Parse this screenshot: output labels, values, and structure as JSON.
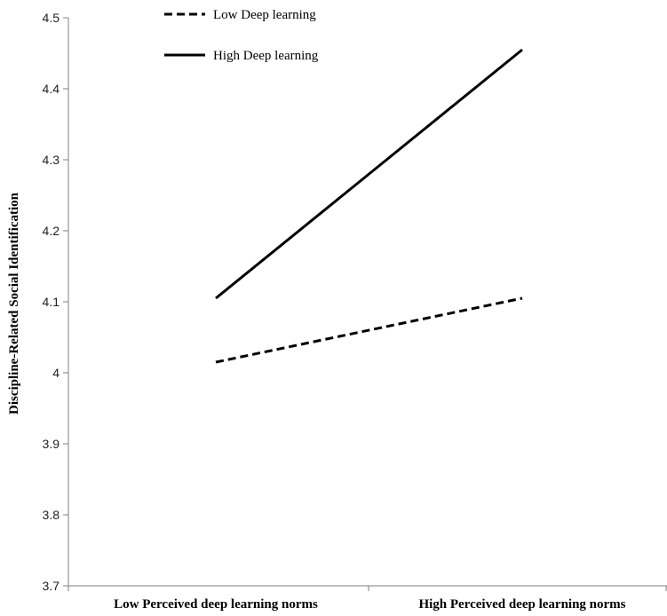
{
  "chart_data": {
    "type": "line",
    "title": "",
    "xlabel": "",
    "ylabel": "Discipline-Related  Social Identification",
    "categories": [
      "Low Perceived deep learning norms",
      "High Perceived deep learning norms"
    ],
    "ylim": [
      3.7,
      4.5
    ],
    "yticks": [
      "3.7",
      "3.8",
      "3.9",
      "4",
      "4.1",
      "4.2",
      "4.3",
      "4.4",
      "4.5"
    ],
    "grid": false,
    "legend_position": "top-left",
    "series": [
      {
        "name": "Low Deep learning",
        "values": [
          4.015,
          4.105
        ],
        "style": "dashed",
        "color": "#000000"
      },
      {
        "name": "High Deep learning",
        "values": [
          4.105,
          4.455
        ],
        "style": "solid",
        "color": "#000000"
      }
    ]
  }
}
